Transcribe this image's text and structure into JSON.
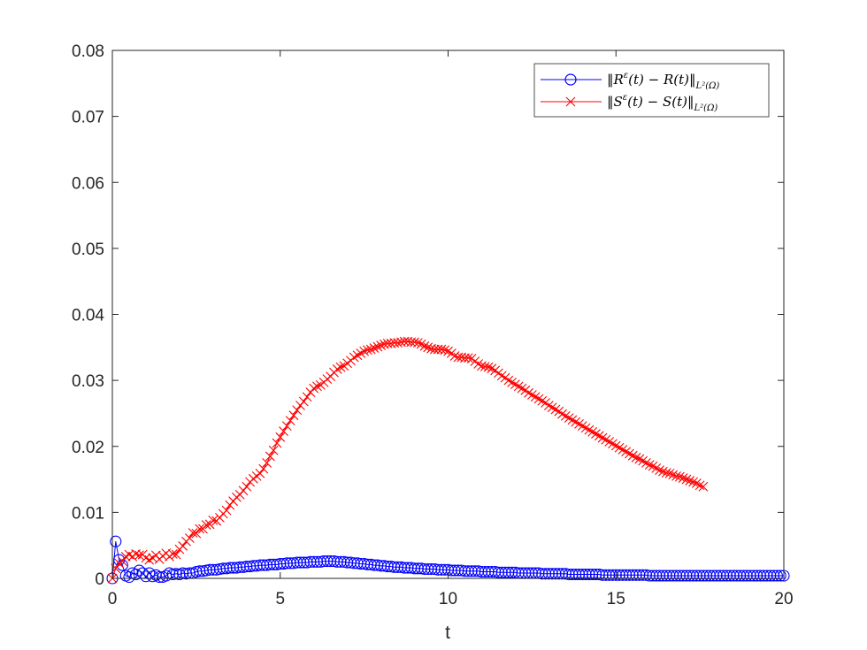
{
  "chart_data": {
    "type": "line",
    "xlabel": "t",
    "ylabel": "",
    "xlim": [
      0,
      20
    ],
    "ylim": [
      0,
      0.08
    ],
    "x_ticks": [
      "0",
      "5",
      "10",
      "15",
      "20"
    ],
    "y_ticks": [
      "0",
      "0.01",
      "0.02",
      "0.03",
      "0.04",
      "0.05",
      "0.06",
      "0.07",
      "0.08"
    ],
    "grid": false,
    "legend_position": "top-right",
    "x_start": 0,
    "x_step": 0.1,
    "series": [
      {
        "name": "‖R^ε(t) − R(t)‖_{L²(Ω)}",
        "color": "#0000ff",
        "marker": "circle",
        "values": [
          0,
          0.0056,
          0.0028,
          0.002,
          0.0004,
          0.0002,
          0.0008,
          0.0006,
          0.0012,
          0.0008,
          0.0003,
          0.0008,
          0.0003,
          0.0005,
          0.0002,
          0.0002,
          0.0004,
          0.0008,
          0.0006,
          0.0007,
          0.0006,
          0.0008,
          0.0007,
          0.0008,
          0.0008,
          0.001,
          0.0011,
          0.0011,
          0.0012,
          0.0013,
          0.0013,
          0.0013,
          0.0014,
          0.0015,
          0.0015,
          0.0016,
          0.0016,
          0.0016,
          0.0017,
          0.0017,
          0.0018,
          0.0018,
          0.0019,
          0.0019,
          0.002,
          0.002,
          0.002,
          0.0021,
          0.0021,
          0.0021,
          0.0022,
          0.0022,
          0.0023,
          0.0023,
          0.0023,
          0.0024,
          0.0024,
          0.0024,
          0.0024,
          0.0025,
          0.0025,
          0.0025,
          0.0025,
          0.0026,
          0.0026,
          0.0026,
          0.0026,
          0.0025,
          0.0025,
          0.0025,
          0.0024,
          0.0024,
          0.0023,
          0.0023,
          0.0022,
          0.0022,
          0.0021,
          0.0021,
          0.002,
          0.002,
          0.0019,
          0.0019,
          0.0018,
          0.0018,
          0.0017,
          0.0017,
          0.0017,
          0.0016,
          0.0016,
          0.0016,
          0.0015,
          0.0015,
          0.0015,
          0.0014,
          0.0014,
          0.0014,
          0.0014,
          0.0013,
          0.0013,
          0.0013,
          0.0013,
          0.0012,
          0.0012,
          0.0012,
          0.0012,
          0.0011,
          0.0011,
          0.0011,
          0.0011,
          0.0011,
          0.001,
          0.001,
          0.001,
          0.001,
          0.001,
          0.0009,
          0.0009,
          0.0009,
          0.0009,
          0.0009,
          0.0009,
          0.0008,
          0.0008,
          0.0008,
          0.0008,
          0.0008,
          0.0008,
          0.0008,
          0.0007,
          0.0007,
          0.0007,
          0.0007,
          0.0007,
          0.0007,
          0.0007,
          0.0007,
          0.0006,
          0.0006,
          0.0006,
          0.0006,
          0.0006,
          0.0006,
          0.0006,
          0.0006,
          0.0006,
          0.0006,
          0.0005,
          0.0005,
          0.0005,
          0.0005,
          0.0005,
          0.0005,
          0.0005,
          0.0005,
          0.0005,
          0.0005,
          0.0005,
          0.0005,
          0.0005,
          0.0005,
          0.0004,
          0.0004,
          0.0004,
          0.0004,
          0.0004,
          0.0004,
          0.0004,
          0.0004,
          0.0004,
          0.0004,
          0.0004,
          0.0004,
          0.0004,
          0.0004,
          0.0004,
          0.0004,
          0.0004,
          0.0004,
          0.0004,
          0.0004,
          0.0004,
          0.0004,
          0.0004,
          0.0004,
          0.0004,
          0.0004,
          0.0004,
          0.0004,
          0.0004,
          0.0004,
          0.0004,
          0.0004,
          0.0004,
          0.0004,
          0.0004,
          0.0004,
          0.0004,
          0.0004,
          0.0004,
          0.0004,
          0.0004
        ]
      },
      {
        "name": "‖S^ε(t) − S(t)‖_{L²(Ω)}",
        "color": "#ff0000",
        "marker": "x",
        "values": [
          0,
          0.0015,
          0.0023,
          0.0026,
          0.0033,
          0.0036,
          0.0033,
          0.0037,
          0.0035,
          0.0036,
          0.0031,
          0.0028,
          0.0031,
          0.0035,
          0.0029,
          0.0034,
          0.0038,
          0.0033,
          0.0037,
          0.0036,
          0.0044,
          0.0049,
          0.0056,
          0.0061,
          0.0069,
          0.0068,
          0.0075,
          0.0075,
          0.0081,
          0.0082,
          0.0088,
          0.0087,
          0.0092,
          0.0098,
          0.0103,
          0.0111,
          0.0117,
          0.0123,
          0.0127,
          0.0133,
          0.0139,
          0.0146,
          0.0151,
          0.0155,
          0.0159,
          0.0166,
          0.0175,
          0.0185,
          0.0194,
          0.0205,
          0.0214,
          0.0223,
          0.0231,
          0.0239,
          0.0247,
          0.0255,
          0.0262,
          0.0268,
          0.0275,
          0.0282,
          0.0288,
          0.0291,
          0.0293,
          0.0297,
          0.0302,
          0.0306,
          0.0312,
          0.0317,
          0.032,
          0.0322,
          0.0326,
          0.033,
          0.0335,
          0.0338,
          0.0341,
          0.0344,
          0.0346,
          0.0347,
          0.0349,
          0.0351,
          0.0353,
          0.0355,
          0.0356,
          0.0356,
          0.0357,
          0.0357,
          0.0358,
          0.0359,
          0.0359,
          0.0358,
          0.0358,
          0.0357,
          0.0355,
          0.0352,
          0.035,
          0.0348,
          0.0347,
          0.0347,
          0.0347,
          0.0346,
          0.0344,
          0.0341,
          0.0337,
          0.0335,
          0.0335,
          0.0334,
          0.0334,
          0.0333,
          0.0329,
          0.0325,
          0.0322,
          0.0321,
          0.032,
          0.0318,
          0.0315,
          0.0311,
          0.0307,
          0.0304,
          0.03,
          0.0297,
          0.0294,
          0.0291,
          0.0288,
          0.0285,
          0.0281,
          0.0278,
          0.0275,
          0.0272,
          0.0269,
          0.0266,
          0.0262,
          0.0259,
          0.0256,
          0.0253,
          0.0249,
          0.0246,
          0.0243,
          0.024,
          0.0237,
          0.0234,
          0.0231,
          0.0228,
          0.0225,
          0.0222,
          0.0219,
          0.0216,
          0.0213,
          0.021,
          0.0207,
          0.0204,
          0.0201,
          0.0198,
          0.0195,
          0.0192,
          0.0189,
          0.0186,
          0.0183,
          0.0181,
          0.0178,
          0.0175,
          0.0172,
          0.017,
          0.0167,
          0.0164,
          0.0162,
          0.016,
          0.0159,
          0.0157,
          0.0155,
          0.0154,
          0.0152,
          0.015,
          0.0148,
          0.0146,
          0.0144,
          0.0141,
          0.0139
        ]
      }
    ]
  }
}
